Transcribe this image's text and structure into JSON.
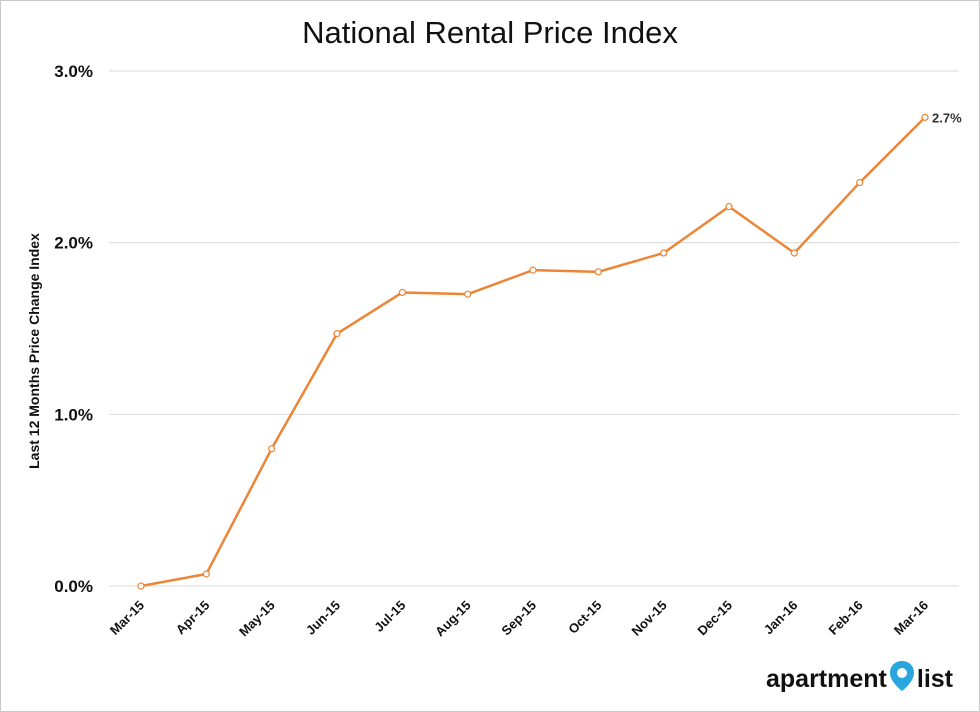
{
  "chart_data": {
    "type": "line",
    "title": "National Rental Price Index",
    "ylabel": "Last 12 Months Price Change Index",
    "xlabel": "",
    "categories": [
      "Mar-15",
      "Apr-15",
      "May-15",
      "Jun-15",
      "Jul-15",
      "Aug-15",
      "Sep-15",
      "Oct-15",
      "Nov-15",
      "Dec-15",
      "Jan-16",
      "Feb-16",
      "Mar-16"
    ],
    "series": [
      {
        "values": [
          0.0,
          0.07,
          0.8,
          1.47,
          1.71,
          1.7,
          1.84,
          1.83,
          1.94,
          2.21,
          1.94,
          2.35,
          2.73
        ]
      }
    ],
    "ylim": [
      0,
      3
    ],
    "yticks": [
      0,
      1,
      2,
      3
    ],
    "ytick_labels": [
      "0.0%",
      "1.0%",
      "2.0%",
      "3.0%"
    ],
    "data_labels": [
      {
        "index": 12,
        "text": "2.7%"
      }
    ],
    "grid": true,
    "legend": "none",
    "line_color": "#ED8537",
    "marker_fill": "#ffffff"
  },
  "brand": {
    "left": "apartment",
    "right": "list",
    "pin_color": "#2aa6de",
    "icon": "map-pin-icon"
  }
}
